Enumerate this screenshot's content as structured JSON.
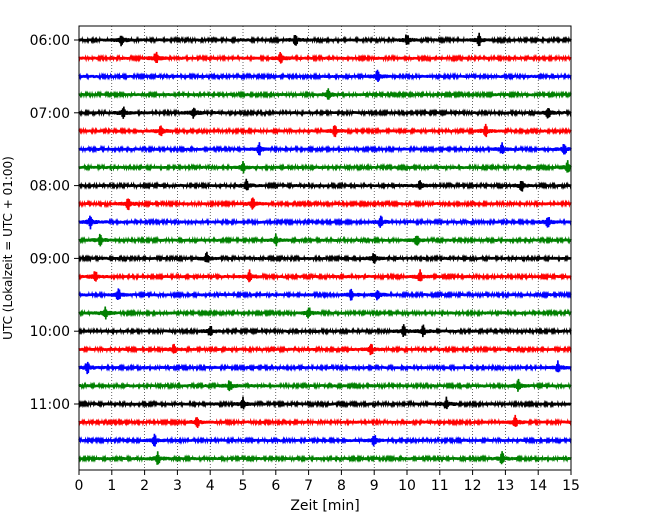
{
  "chart_data": {
    "type": "line",
    "title": "",
    "xlabel": "Zeit  [min]",
    "ylabel": "UTC (Lokalzeit = UTC + 01:00)",
    "xlim": [
      0,
      15
    ],
    "x_ticks": [
      0,
      1,
      2,
      3,
      4,
      5,
      6,
      7,
      8,
      9,
      10,
      11,
      12,
      13,
      14,
      15
    ],
    "x_tick_labels": [
      "0",
      "1",
      "2",
      "3",
      "4",
      "5",
      "6",
      "7",
      "8",
      "9",
      "10",
      "11",
      "12",
      "13",
      "14",
      "15"
    ],
    "x_grid": "dotted vertical lines at each minute",
    "y_tick_labels": [
      "06:00",
      "07:00",
      "08:00",
      "09:00",
      "10:00",
      "11:00"
    ],
    "trace_interval_min": 15,
    "first_trace": "06:00",
    "last_trace": "11:45",
    "trace_colors": [
      "#000000",
      "#ff0000",
      "#0000ff",
      "#008000"
    ],
    "series": [
      {
        "start": "06:00",
        "color": "#000000",
        "spikes_min": [
          1.3,
          6.6,
          10.0,
          12.2
        ]
      },
      {
        "start": "06:15",
        "color": "#ff0000",
        "spikes_min": [
          2.35,
          6.15
        ]
      },
      {
        "start": "06:30",
        "color": "#0000ff",
        "spikes_min": [
          9.1
        ]
      },
      {
        "start": "06:45",
        "color": "#008000",
        "spikes_min": [
          7.6
        ]
      },
      {
        "start": "07:00",
        "color": "#000000",
        "spikes_min": [
          1.35,
          3.5,
          14.3
        ]
      },
      {
        "start": "07:15",
        "color": "#ff0000",
        "spikes_min": [
          2.5,
          7.8,
          12.4
        ]
      },
      {
        "start": "07:30",
        "color": "#0000ff",
        "spikes_min": [
          5.5,
          12.9,
          14.8
        ]
      },
      {
        "start": "07:45",
        "color": "#008000",
        "spikes_min": [
          5.0,
          14.9
        ]
      },
      {
        "start": "08:00",
        "color": "#000000",
        "spikes_min": [
          5.1,
          10.4,
          13.5
        ]
      },
      {
        "start": "08:15",
        "color": "#ff0000",
        "spikes_min": [
          1.5,
          5.3
        ]
      },
      {
        "start": "08:30",
        "color": "#0000ff",
        "spikes_min": [
          0.35,
          9.2,
          14.3
        ]
      },
      {
        "start": "08:45",
        "color": "#008000",
        "spikes_min": [
          0.65,
          6.0,
          10.3
        ]
      },
      {
        "start": "09:00",
        "color": "#000000",
        "spikes_min": [
          3.9,
          9.0
        ]
      },
      {
        "start": "09:15",
        "color": "#ff0000",
        "spikes_min": [
          0.5,
          5.2,
          10.4
        ]
      },
      {
        "start": "09:30",
        "color": "#0000ff",
        "spikes_min": [
          1.2,
          8.3,
          9.1
        ]
      },
      {
        "start": "09:45",
        "color": "#008000",
        "spikes_min": [
          0.8,
          7.0
        ]
      },
      {
        "start": "10:00",
        "color": "#000000",
        "spikes_min": [
          4.0,
          9.9,
          10.5
        ]
      },
      {
        "start": "10:15",
        "color": "#ff0000",
        "spikes_min": [
          2.9,
          8.9
        ]
      },
      {
        "start": "10:30",
        "color": "#0000ff",
        "spikes_min": [
          0.25,
          14.6
        ]
      },
      {
        "start": "10:45",
        "color": "#008000",
        "spikes_min": [
          4.6,
          13.4
        ]
      },
      {
        "start": "11:00",
        "color": "#000000",
        "spikes_min": [
          5.0,
          11.2
        ]
      },
      {
        "start": "11:15",
        "color": "#ff0000",
        "spikes_min": [
          3.6,
          13.3
        ]
      },
      {
        "start": "11:30",
        "color": "#0000ff",
        "spikes_min": [
          2.3,
          9.0
        ]
      },
      {
        "start": "11:45",
        "color": "#008000",
        "spikes_min": [
          2.4,
          12.9
        ]
      }
    ]
  }
}
